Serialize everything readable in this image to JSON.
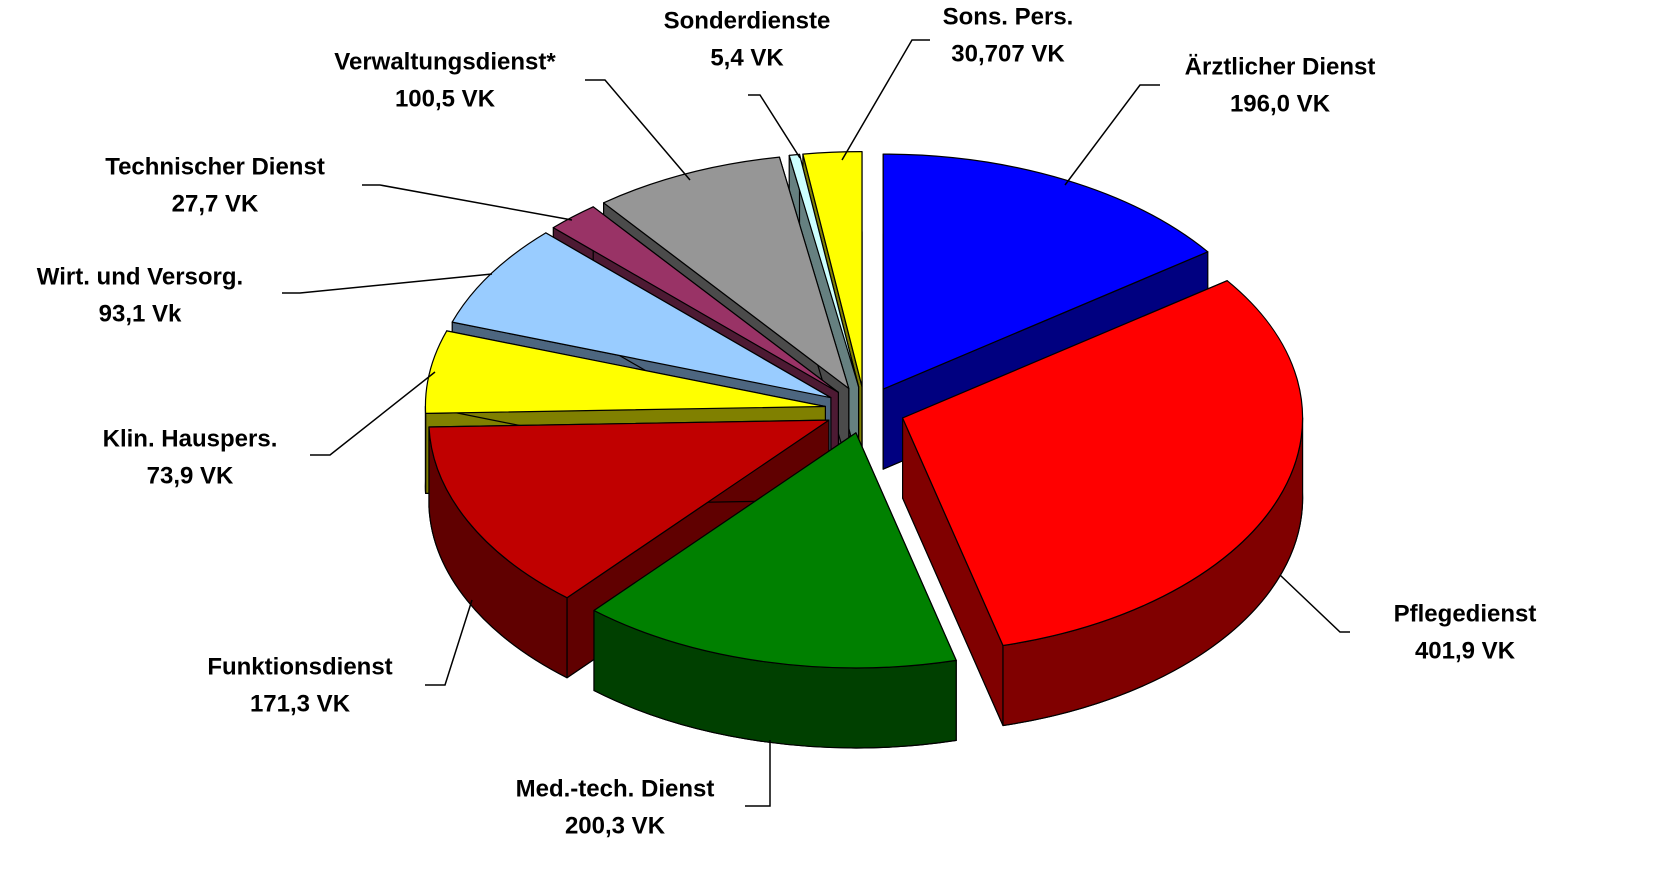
{
  "chart_data": {
    "type": "pie",
    "categories": [
      "Ärztlicher Dienst",
      "Pflegedienst",
      "Med.-tech. Dienst",
      "Funktionsdienst",
      "Klin. Hauspers.",
      "Wirt. und Versorg.",
      "Technischer Dienst",
      "Verwaltungsdienst*",
      "Sonderdienste",
      "Sons. Pers."
    ],
    "values": [
      196.0,
      401.9,
      200.3,
      171.3,
      73.9,
      93.1,
      27.7,
      100.5,
      5.4,
      30.707
    ],
    "value_labels": [
      "196,0 VK",
      "401,9 VK",
      "200,3 VK",
      "171,3 VK",
      "73,9 VK",
      "93,1 Vk",
      "27,7 VK",
      "100,5 VK",
      "5,4 VK",
      "30,707 VK"
    ],
    "colors": [
      "#0000ff",
      "#ff0000",
      "#008000",
      "#c00000",
      "#ffff00",
      "#99ccff",
      "#993366",
      "#969696",
      "#ccffff",
      "#ffff00"
    ]
  }
}
